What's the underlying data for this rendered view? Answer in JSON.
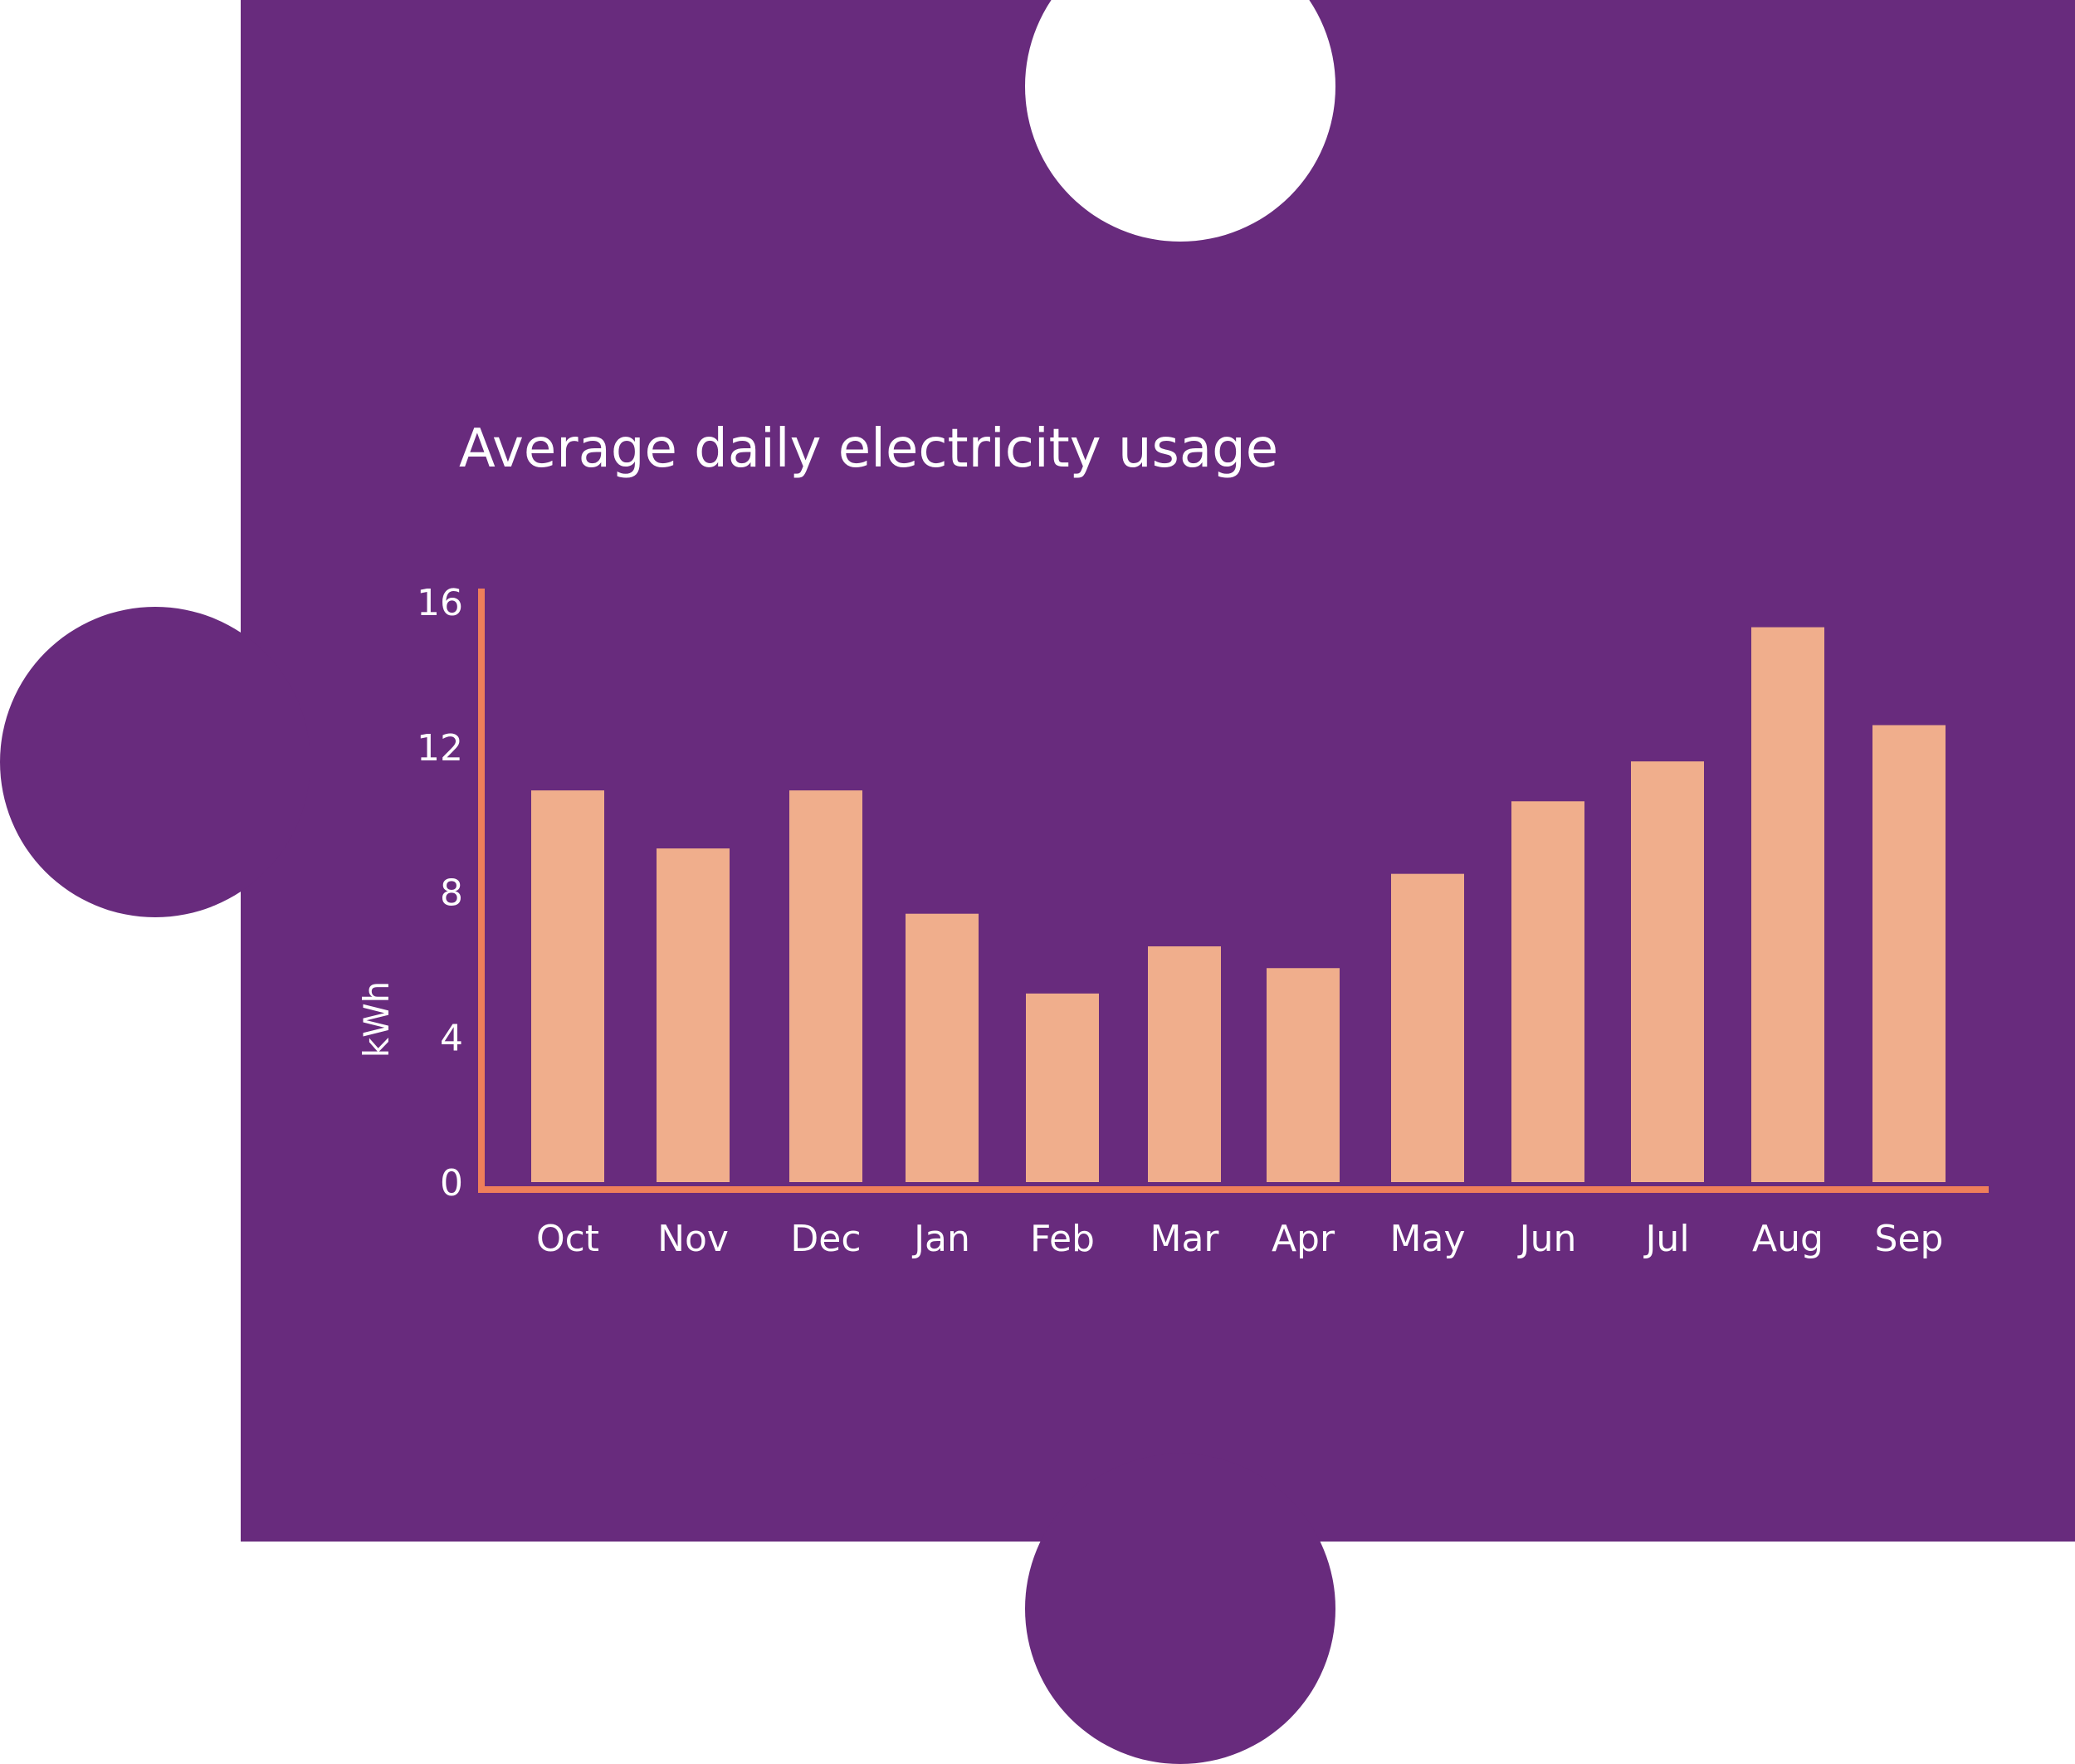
{
  "colors": {
    "background": "#682b7d",
    "bar": "#f0ae8c",
    "axis": "#ef7f5a",
    "text": "#ffffff"
  },
  "chart_data": {
    "type": "bar",
    "title": "Average daily electricity usage",
    "xlabel": "",
    "ylabel": "kWh",
    "ylim": [
      0,
      16
    ],
    "yticks": [
      "0",
      "4",
      "8",
      "12",
      "16"
    ],
    "grid": false,
    "categories": [
      "Oct",
      "Nov",
      "Dec",
      "Jan",
      "Feb",
      "Mar",
      "Apr",
      "May",
      "Jun",
      "Jul",
      "Aug",
      "Sep"
    ],
    "values": [
      10.8,
      9.2,
      10.8,
      7.4,
      5.2,
      6.5,
      5.9,
      8.5,
      10.5,
      11.6,
      15.3,
      12.6
    ]
  }
}
